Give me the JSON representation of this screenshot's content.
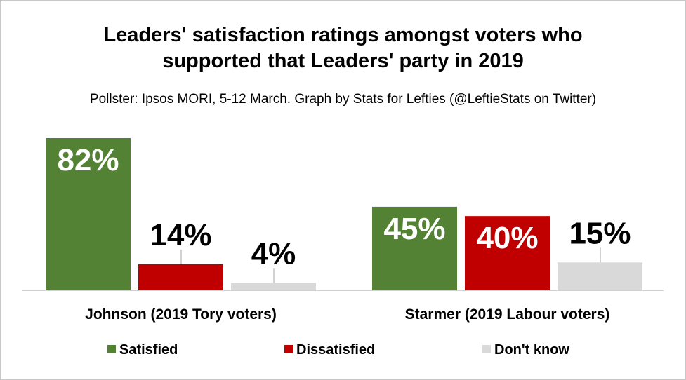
{
  "chart_data": {
    "type": "bar",
    "title_lines": [
      "Leaders' satisfaction ratings amongst voters who",
      "supported that Leaders' party in 2019"
    ],
    "subtitle": "Pollster: Ipsos MORI, 5-12 March. Graph by Stats for Lefties (@LeftieStats on Twitter)",
    "categories": [
      "Johnson (2019 Tory voters)",
      "Starmer (2019 Labour voters)"
    ],
    "series": [
      {
        "name": "Satisfied",
        "color": "#548235",
        "values": [
          82,
          45
        ],
        "labels": [
          "82%",
          "45%"
        ]
      },
      {
        "name": "Dissatisfied",
        "color": "#c00000",
        "values": [
          14,
          40
        ],
        "labels": [
          "14%",
          "40%"
        ]
      },
      {
        "name": "Don't know",
        "color": "#d9d9d9",
        "values": [
          4,
          15
        ],
        "labels": [
          "4%",
          "15%"
        ]
      }
    ],
    "ylim": [
      0,
      82
    ],
    "legend_position": "bottom",
    "grid": false
  }
}
